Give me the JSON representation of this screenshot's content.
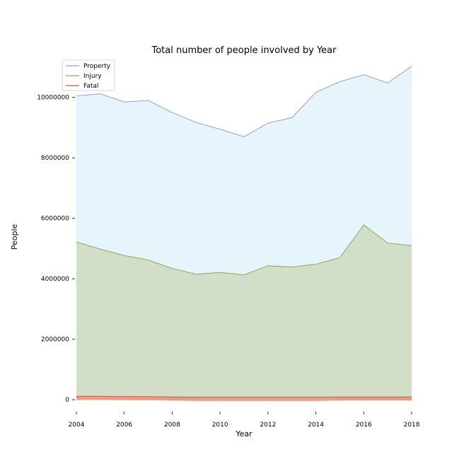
{
  "chart_data": {
    "type": "area",
    "title": "Total number of people involved by Year",
    "xlabel": "Year",
    "ylabel": "People",
    "x": [
      2004,
      2005,
      2006,
      2007,
      2008,
      2009,
      2010,
      2011,
      2012,
      2013,
      2014,
      2015,
      2016,
      2017,
      2018
    ],
    "xticks": [
      2004,
      2006,
      2008,
      2010,
      2012,
      2014,
      2016,
      2018
    ],
    "yticks": [
      0,
      2000000,
      4000000,
      6000000,
      8000000,
      10000000
    ],
    "xlim": [
      2004,
      2018
    ],
    "ylim": [
      -350000,
      11000000
    ],
    "grid": false,
    "legend_position": "top-left",
    "series": [
      {
        "name": "Property",
        "line_color": "#8fa3d6",
        "fill_color": "#e6f4fb",
        "values": [
          10050000,
          10120000,
          9850000,
          9900000,
          9500000,
          9170000,
          8950000,
          8700000,
          9150000,
          9330000,
          10170000,
          10520000,
          10750000,
          10480000,
          11030000
        ]
      },
      {
        "name": "Injury",
        "line_color": "#8aa85a",
        "fill_color": "#d3dec8",
        "values": [
          5220000,
          4980000,
          4770000,
          4620000,
          4340000,
          4150000,
          4210000,
          4130000,
          4430000,
          4390000,
          4480000,
          4700000,
          5780000,
          5180000,
          5100000
        ]
      },
      {
        "name": "Fatal",
        "line_color": "#d9534f",
        "fill_color": "#ea9b86",
        "values": [
          -10000,
          -10000,
          -15000,
          -20000,
          -30000,
          -40000,
          -40000,
          -40000,
          -40000,
          -40000,
          -40000,
          -30000,
          -30000,
          -30000,
          -30000
        ],
        "upper": [
          110000,
          110000,
          105000,
          100000,
          90000,
          85000,
          85000,
          85000,
          85000,
          85000,
          85000,
          88000,
          90000,
          90000,
          90000
        ]
      }
    ]
  }
}
